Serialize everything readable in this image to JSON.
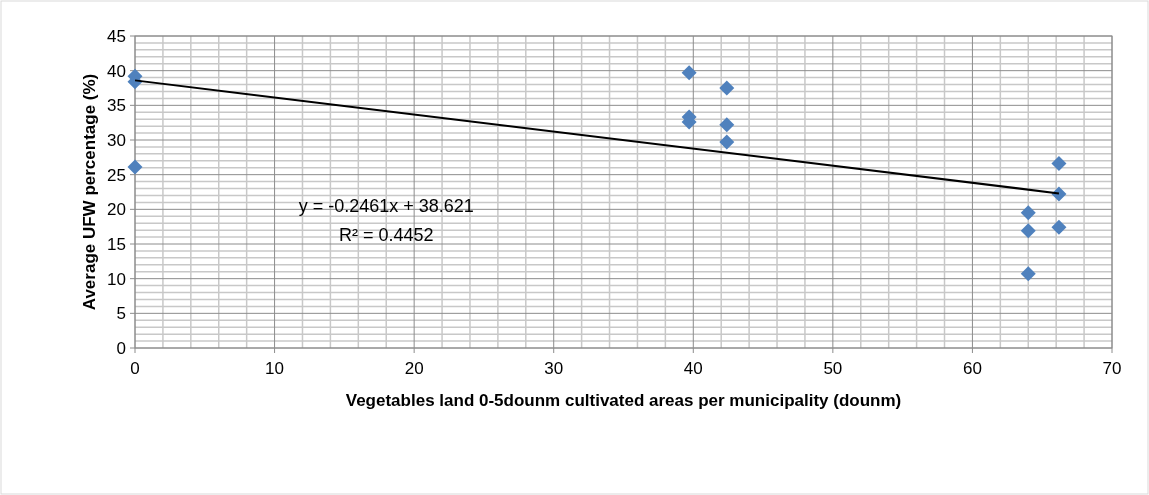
{
  "chart_data": {
    "type": "scatter",
    "xlabel": "Vegetables land 0-5dounm  cultivated areas per municipality (dounm)",
    "ylabel": "Average UFW percentage (%)",
    "xlim": [
      0,
      70
    ],
    "xticks": [
      0,
      10,
      20,
      30,
      40,
      50,
      60,
      70
    ],
    "ylim": [
      0,
      45
    ],
    "yticks": [
      0,
      5,
      10,
      15,
      20,
      25,
      30,
      35,
      40,
      45
    ],
    "grid": true,
    "marker": "diamond",
    "annotations": [
      "y = -0.2461x + 38.621",
      "R² = 0.4452"
    ],
    "series": [
      {
        "color": "#4f81bd",
        "x": [
          0,
          0,
          0,
          39.7,
          39.7,
          39.7,
          42.4,
          42.4,
          42.4,
          64,
          64,
          64,
          66.2,
          66.2,
          66.2
        ],
        "values": [
          39.2,
          38.4,
          26.1,
          39.7,
          33.3,
          32.6,
          37.5,
          32.2,
          29.7,
          19.5,
          16.9,
          10.7,
          26.6,
          22.2,
          17.4
        ]
      },
      {
        "type": "line",
        "color": "#000000",
        "line_style": "solid",
        "marker": "none",
        "x": [
          0,
          66.2
        ],
        "values": [
          38.6,
          22.3
        ]
      }
    ]
  }
}
